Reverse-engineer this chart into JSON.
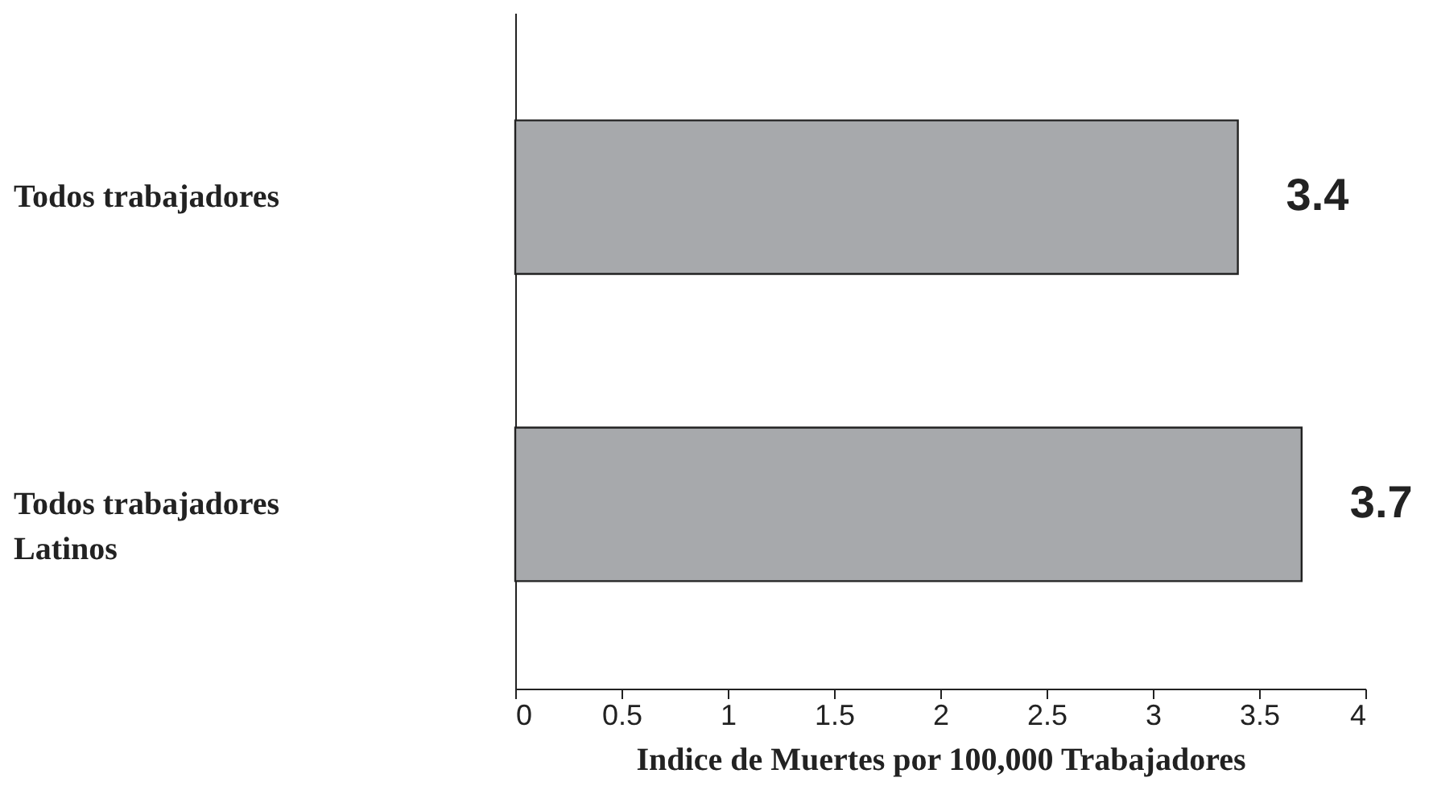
{
  "chart_data": {
    "type": "bar",
    "orientation": "horizontal",
    "categories": [
      "Todos trabajadores",
      "Todos trabajadores Latinos"
    ],
    "values": [
      3.4,
      3.7
    ],
    "color": "#a7a9ac",
    "data_labels": true,
    "xlabel": "Indice de Muertes por 100,000 Trabajadores",
    "xlim": [
      0,
      4
    ],
    "xticks": [
      0,
      0.5,
      1,
      1.5,
      2,
      2.5,
      3,
      3.5,
      4
    ],
    "grid": false
  }
}
